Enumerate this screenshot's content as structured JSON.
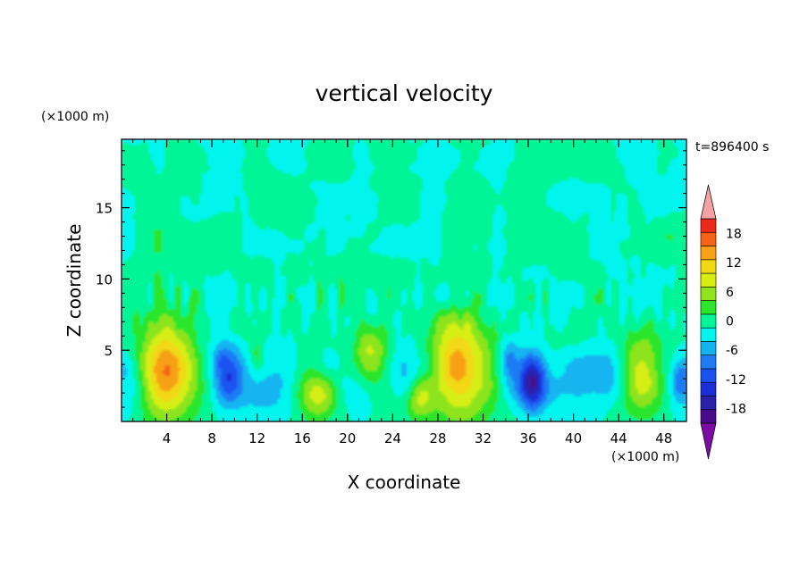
{
  "chart_data": {
    "type": "heatmap",
    "title": "vertical velocity",
    "xlabel": "X coordinate",
    "ylabel": "Z coordinate",
    "x_unit": "(×1000 m)",
    "y_unit": "(×1000 m)",
    "time_label": "t=896400 s",
    "xlim": [
      0,
      50
    ],
    "ylim": [
      0,
      19.8
    ],
    "x_ticks": [
      4,
      8,
      12,
      16,
      20,
      24,
      28,
      32,
      36,
      40,
      44,
      48
    ],
    "y_ticks": [
      5,
      10,
      15
    ],
    "colorbar": {
      "ticks": [
        18,
        12,
        6,
        0,
        -6,
        -12,
        -18
      ],
      "levels": [
        -21,
        -18,
        -15,
        -12,
        -9,
        -6,
        -3,
        0,
        3,
        6,
        9,
        12,
        15,
        18,
        21
      ],
      "colors": [
        "#4a0a8c",
        "#2a22aa",
        "#1a2fd6",
        "#1a52f0",
        "#1f7cf5",
        "#12b4f0",
        "#00f5ef",
        "#00f597",
        "#2ce62c",
        "#8ee41e",
        "#d6ee12",
        "#f2d812",
        "#f7a018",
        "#f46418",
        "#ec2a18"
      ],
      "over_color": "#f2a4a4",
      "under_color": "#7c0ca4"
    },
    "features": [
      {
        "x": 4.0,
        "z": 3.6,
        "value": 16,
        "desc": "updraft"
      },
      {
        "x": 9.5,
        "z": 3.3,
        "value": -13,
        "desc": "downdraft"
      },
      {
        "x": 17.5,
        "z": 1.8,
        "value": 9,
        "desc": "updraft"
      },
      {
        "x": 22.0,
        "z": 4.5,
        "value": 9,
        "desc": "updraft"
      },
      {
        "x": 26.3,
        "z": 1.6,
        "value": 8,
        "desc": "updraft"
      },
      {
        "x": 30.0,
        "z": 3.8,
        "value": 16,
        "desc": "updraft"
      },
      {
        "x": 36.4,
        "z": 2.6,
        "value": -17,
        "desc": "downdraft"
      },
      {
        "x": 46.0,
        "z": 3.3,
        "value": 11,
        "desc": "updraft"
      },
      {
        "x": 49.5,
        "z": 3.0,
        "value": -10,
        "desc": "downdraft"
      }
    ]
  }
}
